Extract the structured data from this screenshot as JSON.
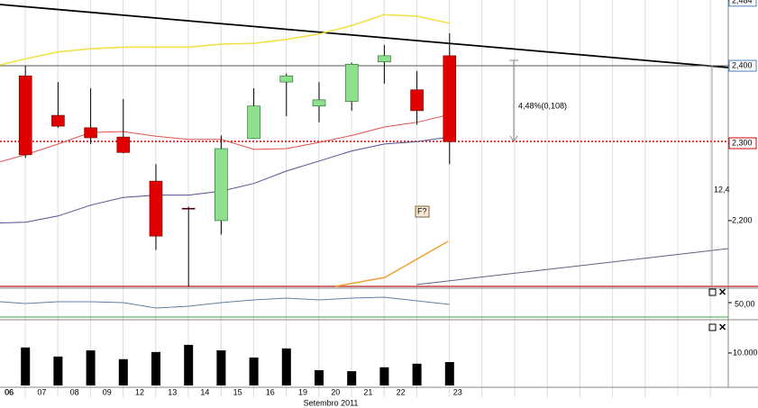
{
  "chart_data": {
    "type": "candlestick",
    "categories": [
      "06",
      "06",
      "07",
      "08",
      "09",
      "12",
      "13",
      "14",
      "15",
      "16",
      "19",
      "20",
      "21",
      "22",
      "23"
    ],
    "x_axis_label": "Setembro 2011",
    "open": [
      null,
      2.387,
      2.336,
      2.32,
      2.308,
      2.251,
      2.216,
      2.2,
      2.306,
      2.379,
      2.348,
      2.354,
      2.405,
      2.369,
      2.413
    ],
    "high": [
      null,
      2.4,
      2.379,
      2.371,
      2.357,
      2.273,
      2.218,
      2.31,
      2.371,
      2.39,
      2.379,
      2.404,
      2.427,
      2.393,
      2.442
    ],
    "low": [
      null,
      2.281,
      2.32,
      2.299,
      2.287,
      2.162,
      2.115,
      2.182,
      2.306,
      2.335,
      2.327,
      2.342,
      2.377,
      2.324,
      2.273
    ],
    "close": [
      null,
      2.285,
      2.322,
      2.307,
      2.288,
      2.18,
      2.216,
      2.293,
      2.348,
      2.387,
      2.356,
      2.402,
      2.413,
      2.342,
      2.302
    ],
    "up_color": "#8ee08e",
    "down_color": "#e00000",
    "series": [
      {
        "color": "#f0e040",
        "values": [
          2.401,
          2.409,
          2.418,
          2.422,
          2.424,
          2.424,
          2.424,
          2.428,
          2.429,
          2.434,
          2.441,
          2.452,
          2.466,
          2.464,
          2.455
        ]
      },
      {
        "color": "#e05050",
        "values": [
          2.276,
          2.285,
          2.299,
          2.314,
          2.315,
          2.309,
          2.305,
          2.305,
          2.292,
          2.293,
          2.301,
          2.31,
          2.321,
          2.327,
          2.337
        ]
      },
      {
        "color": "#505090",
        "values": [
          2.197,
          2.198,
          2.206,
          2.22,
          2.23,
          2.233,
          2.233,
          2.238,
          2.248,
          2.264,
          2.277,
          2.29,
          2.299,
          2.302,
          2.308
        ]
      }
    ],
    "ylim": [
      2.115,
      2.485
    ],
    "yticks": [
      {
        "value": 2.2,
        "label": "2,200"
      },
      {
        "value": 2.3,
        "label": "2,300"
      },
      {
        "value": 2.4,
        "label": "2,400"
      },
      {
        "value": 2.484,
        "label": "2,484"
      }
    ],
    "annotations": [
      "4,48%(0,108)",
      "12,4",
      "F?"
    ],
    "indicator": {
      "color": "#6080a0",
      "values": [
        51.9,
        48.1,
        51.9,
        51.9,
        50,
        38.8,
        42.5,
        50,
        55.6,
        59.4,
        55.6,
        59.4,
        61.3,
        53.8,
        46.3
      ],
      "ylim": [
        20,
        80
      ],
      "yticks": [
        {
          "value": 50,
          "label": "50,00"
        }
      ]
    },
    "volume": {
      "color": "#000000",
      "values": [
        null,
        11700,
        8900,
        10800,
        8100,
        10300,
        12500,
        10800,
        8600,
        11400,
        4700,
        4400,
        5600,
        6700,
        7200
      ],
      "ylim": [
        0,
        19400
      ],
      "yticks": [
        {
          "value": 10000,
          "label": "10.000"
        }
      ]
    }
  }
}
